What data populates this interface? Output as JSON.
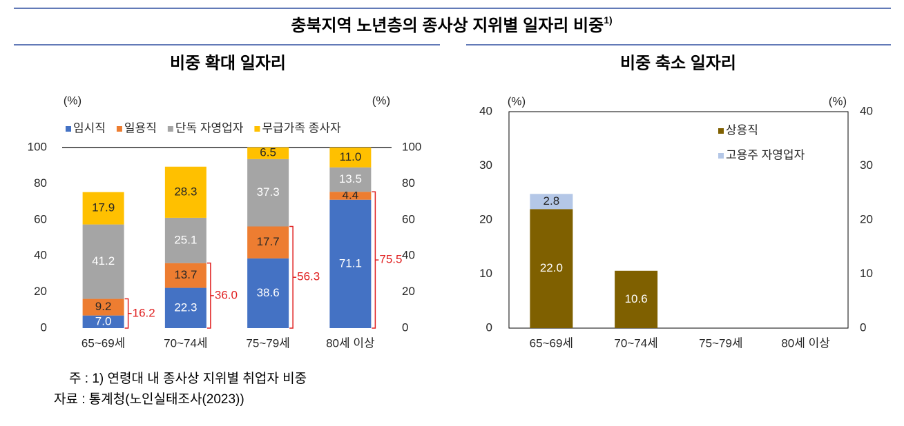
{
  "title": "충북지역 노년층의 종사상 지위별 일자리 비중",
  "title_mark": "1)",
  "chart_data": [
    {
      "type": "bar",
      "stacked": true,
      "title": "비중 확대 일자리",
      "categories": [
        "65~69세",
        "70~74세",
        "75~79세",
        "80세 이상"
      ],
      "series": [
        {
          "name": "임시직",
          "color": "#4472c4",
          "label_color": "#ffffff",
          "values": [
            7.0,
            22.3,
            38.6,
            71.1
          ],
          "value_labels": [
            "7.0",
            "22.3",
            "38.6",
            "71.1"
          ]
        },
        {
          "name": "일용직",
          "color": "#ed7d31",
          "label_color": "#262626",
          "values": [
            9.2,
            13.7,
            17.7,
            4.4
          ],
          "value_labels": [
            "9.2",
            "13.7",
            "17.7",
            "4.4"
          ]
        },
        {
          "name": "단독 자영업자",
          "color": "#a5a5a5",
          "label_color": "#ffffff",
          "values": [
            41.2,
            25.1,
            37.3,
            13.5
          ],
          "value_labels": [
            "41.2",
            "25.1",
            "37.3",
            "13.5"
          ]
        },
        {
          "name": "무급가족 종사자",
          "color": "#ffc000",
          "label_color": "#262626",
          "values": [
            17.9,
            28.3,
            6.5,
            11.0
          ],
          "value_labels": [
            "17.9",
            "28.3",
            "6.5",
            "11.0"
          ]
        }
      ],
      "totals": {
        "color": "#e02020",
        "values": [
          16.2,
          36.0,
          56.3,
          75.5
        ],
        "value_labels": [
          "16.2",
          "36.0",
          "56.3",
          "75.5"
        ]
      },
      "ylabel": "(%)",
      "y2label": "(%)",
      "ylim": [
        0,
        100
      ],
      "yticks": [
        0,
        20,
        40,
        60,
        80,
        100
      ],
      "y2lim": [
        0,
        100
      ],
      "y2ticks": [
        0,
        20,
        40,
        60,
        80,
        100
      ],
      "legend": "top",
      "top_line": true,
      "box": false
    },
    {
      "type": "bar",
      "stacked": true,
      "title": "비중 축소 일자리",
      "categories": [
        "65~69세",
        "70~74세",
        "75~79세",
        "80세 이상"
      ],
      "series": [
        {
          "name": "상용직",
          "color": "#7f6000",
          "label_color": "#ffffff",
          "values": [
            22.0,
            10.6,
            null,
            null
          ],
          "value_labels": [
            "22.0",
            "10.6",
            null,
            null
          ]
        },
        {
          "name": "고용주 자영업자",
          "color": "#b4c7e7",
          "label_color": "#262626",
          "values": [
            2.8,
            null,
            null,
            null
          ],
          "value_labels": [
            "2.8",
            null,
            null,
            null
          ]
        }
      ],
      "ylabel": "(%)",
      "y2label": "(%)",
      "ylim": [
        0,
        40
      ],
      "yticks": [
        0,
        10,
        20,
        30,
        40
      ],
      "y2lim": [
        0,
        40
      ],
      "y2ticks": [
        0,
        10,
        20,
        30,
        40
      ],
      "legend": "upper right",
      "top_line": false,
      "box": true
    }
  ],
  "notes": [
    "주 : 1) 연령대 내 종사상 지위별 취업자 비중",
    "자료 : 통계청(노인실태조사(2023))"
  ]
}
